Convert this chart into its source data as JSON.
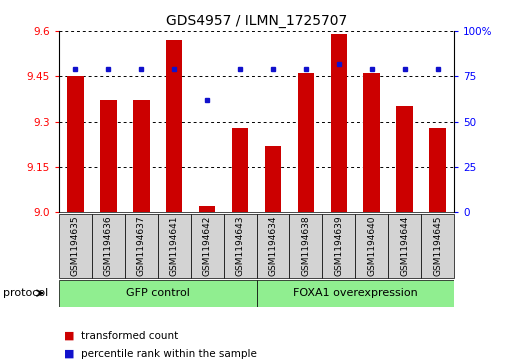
{
  "title": "GDS4957 / ILMN_1725707",
  "samples": [
    "GSM1194635",
    "GSM1194636",
    "GSM1194637",
    "GSM1194641",
    "GSM1194642",
    "GSM1194643",
    "GSM1194634",
    "GSM1194638",
    "GSM1194639",
    "GSM1194640",
    "GSM1194644",
    "GSM1194645"
  ],
  "red_values": [
    9.45,
    9.37,
    9.37,
    9.57,
    9.02,
    9.28,
    9.22,
    9.46,
    9.59,
    9.46,
    9.35,
    9.28
  ],
  "blue_values": [
    79,
    79,
    79,
    79,
    62,
    79,
    79,
    79,
    82,
    79,
    79,
    79
  ],
  "ylim_left": [
    9.0,
    9.6
  ],
  "ylim_right": [
    0,
    100
  ],
  "yticks_left": [
    9.0,
    9.15,
    9.3,
    9.45,
    9.6
  ],
  "yticks_right": [
    0,
    25,
    50,
    75,
    100
  ],
  "group1_label": "GFP control",
  "group2_label": "FOXA1 overexpression",
  "group1_count": 6,
  "group2_count": 6,
  "legend_red": "transformed count",
  "legend_blue": "percentile rank within the sample",
  "bar_color": "#cc0000",
  "dot_color": "#1111cc",
  "group_bg_color": "#90ee90",
  "sample_bg_color": "#d3d3d3",
  "protocol_label": "protocol",
  "bar_width": 0.5,
  "title_fontsize": 10,
  "tick_fontsize": 7.5,
  "sample_fontsize": 6.5,
  "group_fontsize": 8,
  "legend_fontsize": 7.5
}
